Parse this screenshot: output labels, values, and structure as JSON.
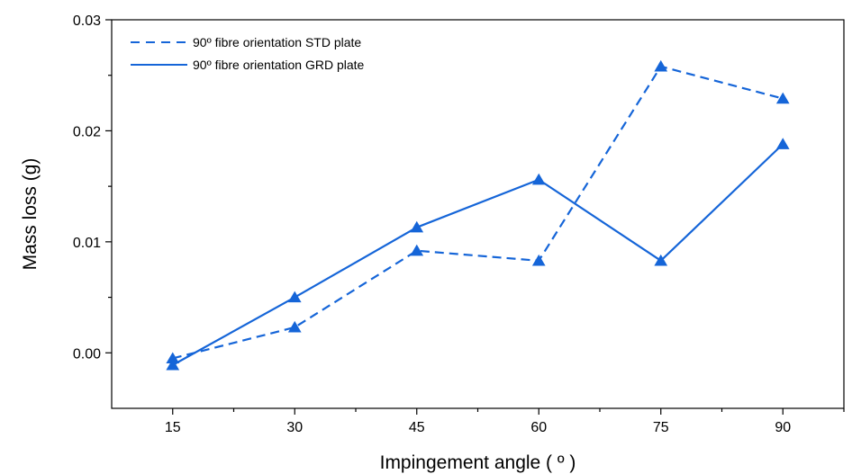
{
  "chart_data": {
    "type": "line",
    "title": "",
    "xlabel": "Impingement angle ( º )",
    "ylabel": "Mass loss (g)",
    "x": [
      15,
      30,
      45,
      60,
      75,
      90
    ],
    "xlim": [
      7.5,
      97.5
    ],
    "ylim": [
      -0.005,
      0.03
    ],
    "xticks": [
      15,
      30,
      45,
      60,
      75,
      90
    ],
    "xtick_labels": [
      "15",
      "30",
      "45",
      "60",
      "75",
      "90"
    ],
    "yticks": [
      0.0,
      0.01,
      0.02,
      0.03
    ],
    "ytick_labels": [
      "0.00",
      "0.01",
      "0.02",
      "0.03"
    ],
    "grid": false,
    "legend_position": "top-left",
    "series": [
      {
        "name": "90º fibre orientation STD plate",
        "values": [
          -0.0005,
          0.0023,
          0.0092,
          0.0083,
          0.0258,
          0.0229
        ],
        "line_style": "dashed",
        "marker": "triangle",
        "color": "#1565d8"
      },
      {
        "name": "90º fibre orientation GRD plate",
        "values": [
          -0.0011,
          0.005,
          0.0113,
          0.0156,
          0.0083,
          0.0188
        ],
        "line_style": "solid",
        "marker": "triangle",
        "color": "#1565d8"
      }
    ]
  }
}
